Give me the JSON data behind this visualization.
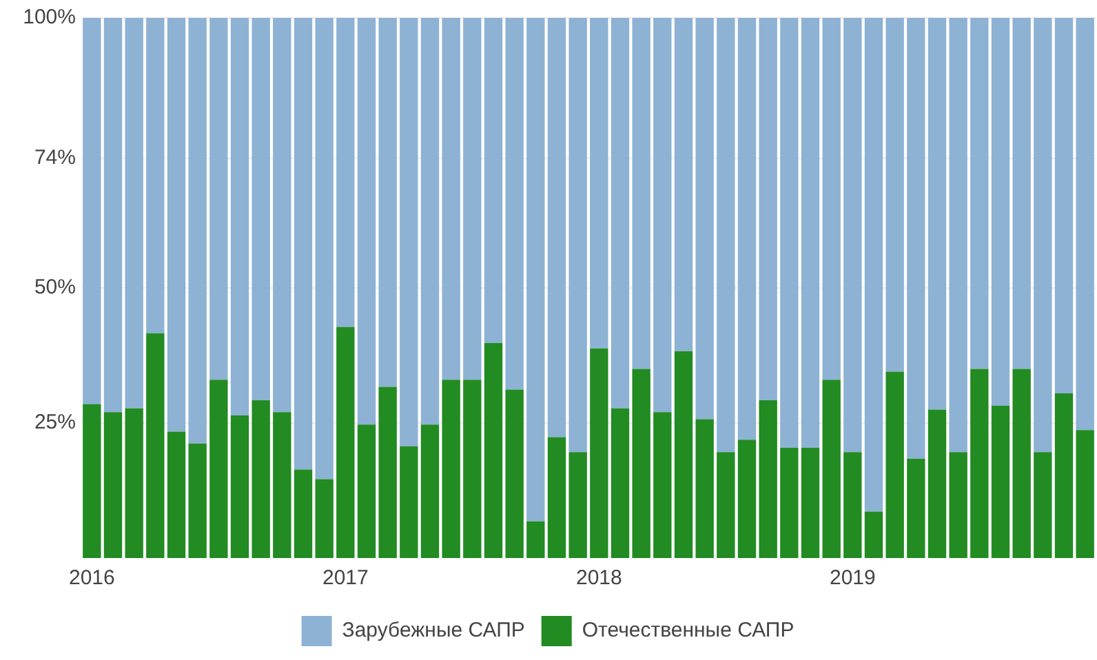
{
  "chart_data": {
    "type": "bar",
    "stacked": true,
    "categories": [
      "2016",
      null,
      null,
      null,
      null,
      null,
      null,
      null,
      null,
      null,
      null,
      null,
      "2017",
      null,
      null,
      null,
      null,
      null,
      null,
      null,
      null,
      null,
      null,
      null,
      "2018",
      null,
      null,
      null,
      null,
      null,
      null,
      null,
      null,
      null,
      null,
      null,
      "2019",
      null,
      null,
      null,
      null,
      null,
      null,
      null,
      null,
      null,
      null,
      null
    ],
    "series": [
      {
        "name": "Отечественные САПР",
        "color": "#228b22",
        "values": [
          28.5,
          27,
          27.7,
          41.6,
          23.4,
          21.2,
          33,
          26.4,
          29.2,
          27,
          16.4,
          14.6,
          42.8,
          24.7,
          31.7,
          20.7,
          24.7,
          33,
          33,
          39.8,
          31.2,
          6.8,
          22.4,
          19.6,
          38.8,
          27.7,
          35,
          27,
          38.3,
          25.7,
          19.6,
          21.9,
          29.2,
          20.4,
          20.4,
          33,
          19.6,
          8.6,
          34.5,
          18.4,
          27.5,
          19.6,
          35,
          28.2,
          35,
          19.6,
          30.5,
          23.7
        ]
      },
      {
        "name": "Зарубежные САПР",
        "color": "#8db2d4",
        "values": [
          71.5,
          73,
          72.3,
          58.4,
          76.6,
          78.8,
          67,
          73.6,
          70.8,
          73,
          83.6,
          85.4,
          57.2,
          75.3,
          68.3,
          79.3,
          75.3,
          67,
          67,
          60.2,
          68.8,
          93.2,
          77.6,
          80.4,
          61.2,
          72.3,
          65,
          73,
          61.7,
          74.3,
          80.4,
          78.1,
          70.8,
          79.6,
          79.6,
          67,
          80.4,
          91.4,
          65.5,
          81.6,
          72.5,
          80.4,
          65,
          71.8,
          65,
          80.4,
          69.5,
          76.3
        ]
      }
    ],
    "ylim": [
      0,
      100
    ],
    "yticks": [
      {
        "value": 25,
        "label": "25%"
      },
      {
        "value": 50,
        "label": "50%"
      },
      {
        "value": 74,
        "label": "74%"
      },
      {
        "value": 100,
        "label": "100%"
      }
    ],
    "grid": "y",
    "legend": "bottom"
  }
}
